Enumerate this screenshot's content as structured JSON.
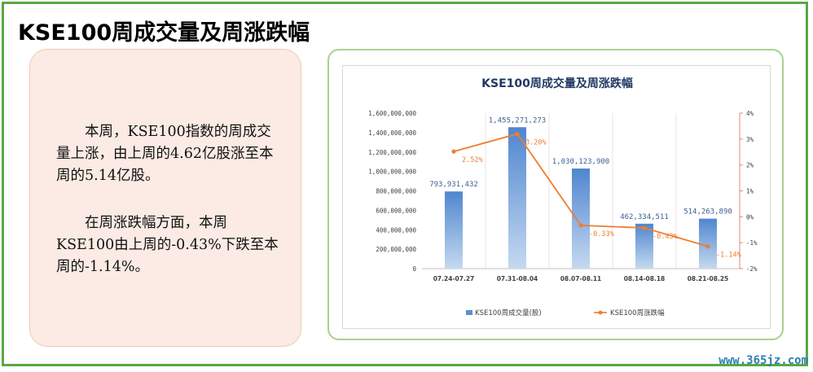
{
  "header": {
    "title": "KSE100周成交量及周涨跌幅"
  },
  "left_panel": {
    "paragraph1": "本周，KSE100指数的周成交量上涨，由上周的4.62亿股涨至本周的5.14亿股。",
    "paragraph2": "在周涨跌幅方面，本周KSE100由上周的-0.43%下跌至本周的-1.14%。"
  },
  "watermark": "www.365jz.com",
  "colors": {
    "bar": "#5b8fd0",
    "line": "#ed7d31",
    "title": "#1f3864",
    "border_green": "#5aa845"
  },
  "chart_data": {
    "type": "bar",
    "title": "KSE100周成交量及周涨跌幅",
    "categories": [
      "07.24-07.27",
      "07.31-08.04",
      "08.07-08.11",
      "08.14-08.18",
      "08.21-08.25"
    ],
    "series": [
      {
        "name": "KSE100周成交量(股)",
        "type": "bar",
        "axis": "left",
        "values": [
          793931432,
          1455271273,
          1030123900,
          462334511,
          514263890
        ],
        "labels": [
          "793,931,432",
          "1,455,271,273",
          "1,030,123,900",
          "462,334,511",
          "514,263,890"
        ]
      },
      {
        "name": "KSE100周涨跌幅",
        "type": "line",
        "axis": "right",
        "values": [
          2.52,
          3.2,
          -0.33,
          -0.43,
          -1.14
        ],
        "labels": [
          "2.52%",
          "3.20%",
          "-0.33%",
          "-0.43%",
          "-1.14%"
        ]
      }
    ],
    "ylim_left": [
      0,
      1600000000
    ],
    "yticks_left": [
      "0",
      "200,000,000",
      "400,000,000",
      "600,000,000",
      "800,000,000",
      "1,000,000,000",
      "1,200,000,000",
      "1,400,000,000",
      "1,600,000,000"
    ],
    "ylim_right": [
      -2,
      4
    ],
    "yticks_right": [
      "-2%",
      "-1%",
      "0%",
      "1%",
      "2%",
      "3%",
      "4%"
    ],
    "legend_position": "bottom",
    "grid": false
  }
}
